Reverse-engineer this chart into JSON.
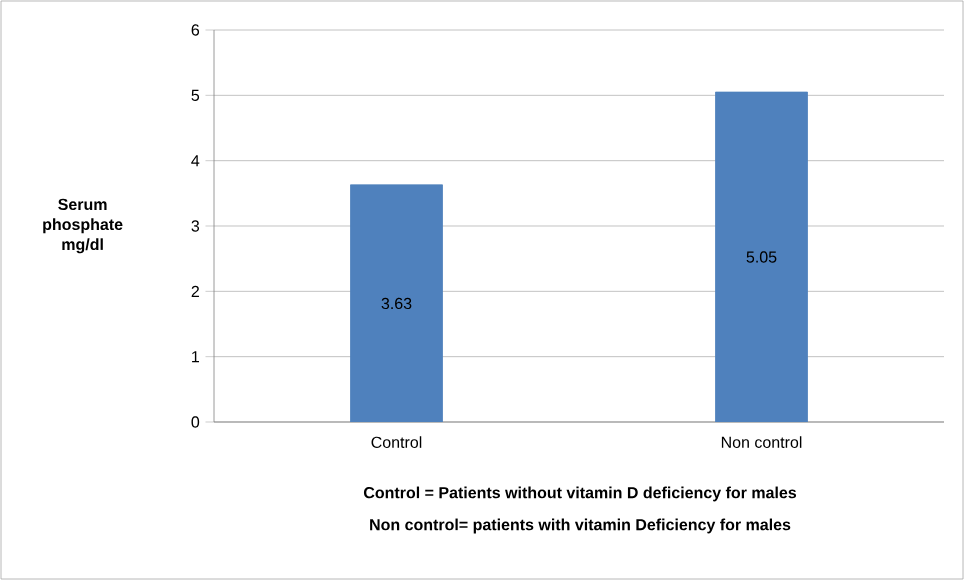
{
  "chart_data": {
    "type": "bar",
    "categories": [
      "Control",
      "Non control"
    ],
    "values": [
      3.63,
      5.05
    ],
    "value_labels": [
      "3.63",
      "5.05"
    ],
    "color": "#4f81bd",
    "ylabel": "Serum phosphate mg/dl",
    "ylim": [
      0,
      6
    ],
    "yticks": [
      0,
      1,
      2,
      3,
      4,
      5,
      6
    ],
    "grid": "y",
    "annotations": [
      "Control = Patients without vitamin D deficiency for males",
      "Non control= patients with vitamin Deficiency for males"
    ]
  }
}
